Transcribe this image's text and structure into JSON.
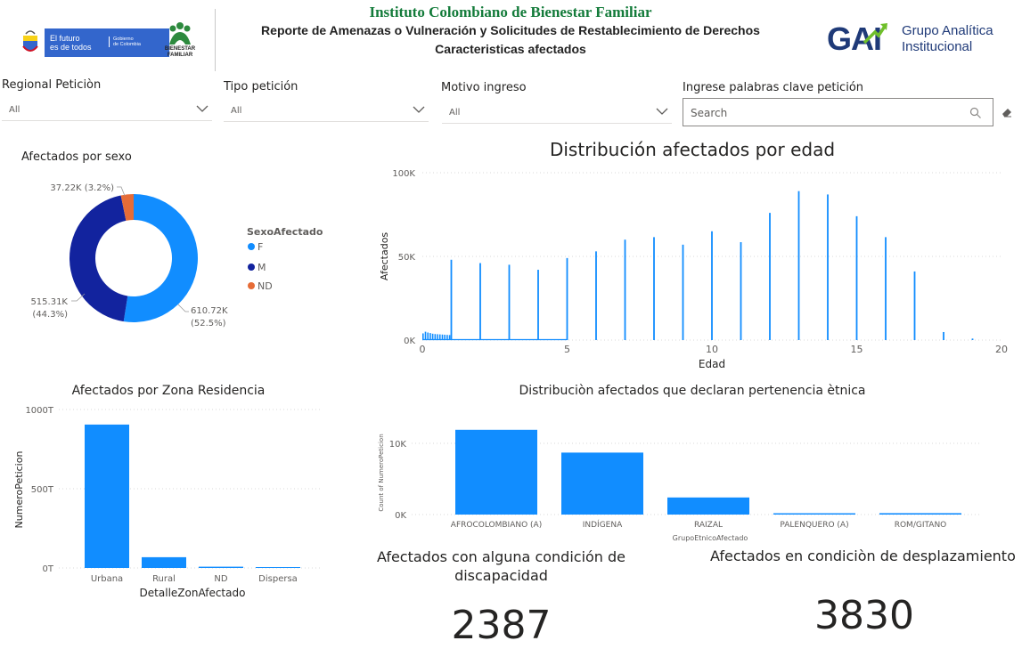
{
  "header": {
    "org_title": "Instituto Colombiano de Bienestar Familiar",
    "report_title": "Reporte de Amenazas o Vulneración y Solicitudes de Restablecimiento de Derechos",
    "report_subtitle": "Caracteristicas afectados",
    "gov_logo_line1": "El futuro",
    "gov_logo_line2": "es de todos",
    "gov_logo_line3": "Gobierno",
    "gov_logo_line4": "de Colombia",
    "bf_logo_line1": "BIENESTAR",
    "bf_logo_line2": "FAMILIAR",
    "gai_mark": "GAI",
    "gai_line1": "Grupo Analítica",
    "gai_line2": "Institucional"
  },
  "filters": {
    "regional": {
      "label": "Regional Peticiòn",
      "value": "All"
    },
    "tipo": {
      "label": "Tipo petición",
      "value": "All"
    },
    "motivo": {
      "label": "Motivo ingreso",
      "value": "All"
    },
    "keywords": {
      "label": "Ingrese palabras clave petición",
      "placeholder": "Search"
    }
  },
  "colors": {
    "primary": "#118dff",
    "navy": "#12239e",
    "orange": "#e66c37",
    "green": "#137b3a",
    "gai_navy": "#1f3a78",
    "gai_green": "#6fbf2b"
  },
  "cards": {
    "discapacidad": {
      "title_line1": "Afectados con alguna condición de",
      "title_line2": "discapacidad",
      "value": "2387"
    },
    "desplazamiento": {
      "title": "Afectados en condiciòn de desplazamiento",
      "value": "3830"
    }
  },
  "chart_data": [
    {
      "id": "sexo",
      "type": "pie",
      "title": "Afectados por sexo",
      "legend_title": "SexoAfectado",
      "legend_position": "right",
      "categories": [
        "F",
        "M",
        "ND"
      ],
      "values": [
        610.72,
        515.31,
        37.22
      ],
      "value_unit": "K",
      "labels": [
        "610.72K (52.5%)",
        "515.31K (44.3%)",
        "37.22K (3.2%)"
      ],
      "label_lines": [
        [
          "610.72K",
          "(52.5%)"
        ],
        [
          "515.31K",
          "(44.3%)"
        ],
        [
          "37.22K (3.2%)"
        ]
      ],
      "colors": [
        "#118dff",
        "#12239e",
        "#e66c37"
      ]
    },
    {
      "id": "edad",
      "type": "bar",
      "title": "Distribución afectados por edad",
      "xlabel": "Edad",
      "ylabel": "Afectados",
      "xlim": [
        0,
        20
      ],
      "ylim": [
        0,
        100000
      ],
      "xticks": [
        "0",
        "5",
        "10",
        "15",
        "20"
      ],
      "yticks": [
        "0K",
        "50K",
        "100K"
      ],
      "grid": true,
      "infant_values": [
        4000,
        5000,
        4500,
        4200,
        3800,
        3600,
        3500,
        3400,
        3300,
        3200,
        3100,
        3000
      ],
      "x": [
        1,
        2,
        3,
        4,
        5,
        6,
        7,
        8,
        9,
        10,
        11,
        12,
        13,
        14,
        15,
        16,
        17,
        18,
        19
      ],
      "values": [
        48000,
        46000,
        45000,
        42000,
        49000,
        53000,
        60000,
        61500,
        57000,
        65000,
        58500,
        76000,
        89000,
        87000,
        74000,
        61500,
        41000,
        4800,
        900
      ]
    },
    {
      "id": "zona",
      "type": "bar",
      "title": "Afectados por Zona Residencia",
      "xlabel": "DetalleZonAfectado",
      "ylabel": "NumeroPeticion",
      "categories": [
        "Urbana",
        "Rural",
        "ND",
        "Dispersa"
      ],
      "values": [
        905,
        68,
        8,
        4
      ],
      "ylim": [
        0,
        1000
      ],
      "yticks": [
        "0T",
        "500T",
        "1000T"
      ],
      "grid": true
    },
    {
      "id": "etnica",
      "type": "bar",
      "title": "Distribuciòn afectados que declaran pertenencia ètnica",
      "xlabel": "GrupoEtnicoAfectado",
      "ylabel": "Count of NumeroPeticion",
      "categories": [
        "AFROCOLOMBIANO (A)",
        "INDÍGENA",
        "RAIZAL",
        "PALENQUERO (A)",
        "ROM/GITANO"
      ],
      "values": [
        11900,
        8700,
        2400,
        150,
        200
      ],
      "ylim": [
        0,
        14000
      ],
      "yticks": [
        "0K",
        "10K"
      ],
      "grid": true
    }
  ]
}
